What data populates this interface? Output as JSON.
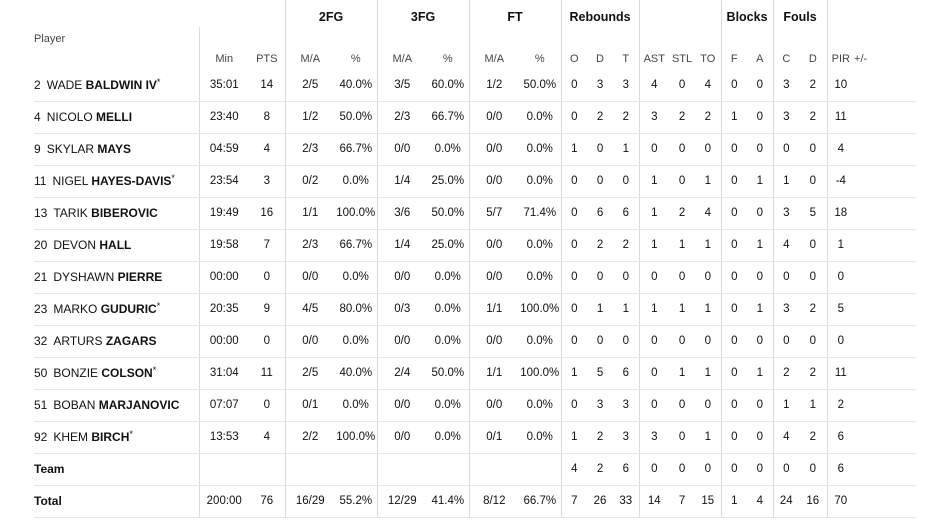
{
  "header": {
    "groups": [
      "2FG",
      "3FG",
      "FT",
      "Rebounds",
      "Blocks",
      "Fouls"
    ],
    "columns": [
      "Player",
      "Min",
      "PTS",
      "M/A",
      "%",
      "M/A",
      "%",
      "M/A",
      "%",
      "O",
      "D",
      "T",
      "AST",
      "STL",
      "TO",
      "F",
      "A",
      "C",
      "D",
      "PIR",
      "+/-"
    ]
  },
  "players": [
    {
      "num": "2",
      "first": "WADE",
      "last": "BALDWIN IV",
      "starter": "*",
      "min": "35:01",
      "pts": "14",
      "fg2": "2/5",
      "fg2p": "40.0%",
      "fg3": "3/5",
      "fg3p": "60.0%",
      "ft": "1/2",
      "ftp": "50.0%",
      "o": "0",
      "d": "3",
      "t": "3",
      "ast": "4",
      "stl": "0",
      "to": "4",
      "bf": "0",
      "ba": "0",
      "fc": "3",
      "fd": "2",
      "pir": "10",
      "pm": ""
    },
    {
      "num": "4",
      "first": "NICOLO",
      "last": "MELLI",
      "starter": "",
      "min": "23:40",
      "pts": "8",
      "fg2": "1/2",
      "fg2p": "50.0%",
      "fg3": "2/3",
      "fg3p": "66.7%",
      "ft": "0/0",
      "ftp": "0.0%",
      "o": "0",
      "d": "2",
      "t": "2",
      "ast": "3",
      "stl": "2",
      "to": "2",
      "bf": "1",
      "ba": "0",
      "fc": "3",
      "fd": "2",
      "pir": "11",
      "pm": ""
    },
    {
      "num": "9",
      "first": "SKYLAR",
      "last": "MAYS",
      "starter": "",
      "min": "04:59",
      "pts": "4",
      "fg2": "2/3",
      "fg2p": "66.7%",
      "fg3": "0/0",
      "fg3p": "0.0%",
      "ft": "0/0",
      "ftp": "0.0%",
      "o": "1",
      "d": "0",
      "t": "1",
      "ast": "0",
      "stl": "0",
      "to": "0",
      "bf": "0",
      "ba": "0",
      "fc": "0",
      "fd": "0",
      "pir": "4",
      "pm": ""
    },
    {
      "num": "11",
      "first": "NIGEL",
      "last": "HAYES-DAVIS",
      "starter": "*",
      "min": "23:54",
      "pts": "3",
      "fg2": "0/2",
      "fg2p": "0.0%",
      "fg3": "1/4",
      "fg3p": "25.0%",
      "ft": "0/0",
      "ftp": "0.0%",
      "o": "0",
      "d": "0",
      "t": "0",
      "ast": "1",
      "stl": "0",
      "to": "1",
      "bf": "0",
      "ba": "1",
      "fc": "1",
      "fd": "0",
      "pir": "-4",
      "pm": ""
    },
    {
      "num": "13",
      "first": "TARIK",
      "last": "BIBEROVIC",
      "starter": "",
      "min": "19:49",
      "pts": "16",
      "fg2": "1/1",
      "fg2p": "100.0%",
      "fg3": "3/6",
      "fg3p": "50.0%",
      "ft": "5/7",
      "ftp": "71.4%",
      "o": "0",
      "d": "6",
      "t": "6",
      "ast": "1",
      "stl": "2",
      "to": "4",
      "bf": "0",
      "ba": "0",
      "fc": "3",
      "fd": "5",
      "pir": "18",
      "pm": ""
    },
    {
      "num": "20",
      "first": "DEVON",
      "last": "HALL",
      "starter": "",
      "min": "19:58",
      "pts": "7",
      "fg2": "2/3",
      "fg2p": "66.7%",
      "fg3": "1/4",
      "fg3p": "25.0%",
      "ft": "0/0",
      "ftp": "0.0%",
      "o": "0",
      "d": "2",
      "t": "2",
      "ast": "1",
      "stl": "1",
      "to": "1",
      "bf": "0",
      "ba": "1",
      "fc": "4",
      "fd": "0",
      "pir": "1",
      "pm": ""
    },
    {
      "num": "21",
      "first": "DYSHAWN",
      "last": "PIERRE",
      "starter": "",
      "min": "00:00",
      "pts": "0",
      "fg2": "0/0",
      "fg2p": "0.0%",
      "fg3": "0/0",
      "fg3p": "0.0%",
      "ft": "0/0",
      "ftp": "0.0%",
      "o": "0",
      "d": "0",
      "t": "0",
      "ast": "0",
      "stl": "0",
      "to": "0",
      "bf": "0",
      "ba": "0",
      "fc": "0",
      "fd": "0",
      "pir": "0",
      "pm": ""
    },
    {
      "num": "23",
      "first": "MARKO",
      "last": "GUDURIC",
      "starter": "*",
      "min": "20:35",
      "pts": "9",
      "fg2": "4/5",
      "fg2p": "80.0%",
      "fg3": "0/3",
      "fg3p": "0.0%",
      "ft": "1/1",
      "ftp": "100.0%",
      "o": "0",
      "d": "1",
      "t": "1",
      "ast": "1",
      "stl": "1",
      "to": "1",
      "bf": "0",
      "ba": "1",
      "fc": "3",
      "fd": "2",
      "pir": "5",
      "pm": ""
    },
    {
      "num": "32",
      "first": "ARTURS",
      "last": "ZAGARS",
      "starter": "",
      "min": "00:00",
      "pts": "0",
      "fg2": "0/0",
      "fg2p": "0.0%",
      "fg3": "0/0",
      "fg3p": "0.0%",
      "ft": "0/0",
      "ftp": "0.0%",
      "o": "0",
      "d": "0",
      "t": "0",
      "ast": "0",
      "stl": "0",
      "to": "0",
      "bf": "0",
      "ba": "0",
      "fc": "0",
      "fd": "0",
      "pir": "0",
      "pm": ""
    },
    {
      "num": "50",
      "first": "BONZIE",
      "last": "COLSON",
      "starter": "*",
      "min": "31:04",
      "pts": "11",
      "fg2": "2/5",
      "fg2p": "40.0%",
      "fg3": "2/4",
      "fg3p": "50.0%",
      "ft": "1/1",
      "ftp": "100.0%",
      "o": "1",
      "d": "5",
      "t": "6",
      "ast": "0",
      "stl": "1",
      "to": "1",
      "bf": "0",
      "ba": "1",
      "fc": "2",
      "fd": "2",
      "pir": "11",
      "pm": ""
    },
    {
      "num": "51",
      "first": "BOBAN",
      "last": "MARJANOVIC",
      "starter": "",
      "min": "07:07",
      "pts": "0",
      "fg2": "0/1",
      "fg2p": "0.0%",
      "fg3": "0/0",
      "fg3p": "0.0%",
      "ft": "0/0",
      "ftp": "0.0%",
      "o": "0",
      "d": "3",
      "t": "3",
      "ast": "0",
      "stl": "0",
      "to": "0",
      "bf": "0",
      "ba": "0",
      "fc": "1",
      "fd": "1",
      "pir": "2",
      "pm": ""
    },
    {
      "num": "92",
      "first": "KHEM",
      "last": "BIRCH",
      "starter": "*",
      "min": "13:53",
      "pts": "4",
      "fg2": "2/2",
      "fg2p": "100.0%",
      "fg3": "0/0",
      "fg3p": "0.0%",
      "ft": "0/1",
      "ftp": "0.0%",
      "o": "1",
      "d": "2",
      "t": "3",
      "ast": "3",
      "stl": "0",
      "to": "1",
      "bf": "0",
      "ba": "0",
      "fc": "4",
      "fd": "2",
      "pir": "6",
      "pm": ""
    }
  ],
  "team": {
    "label": "Team",
    "o": "4",
    "d": "2",
    "t": "6",
    "ast": "0",
    "stl": "0",
    "to": "0",
    "bf": "0",
    "ba": "0",
    "fc": "0",
    "fd": "0",
    "pir": "6"
  },
  "total": {
    "label": "Total",
    "min": "200:00",
    "pts": "76",
    "fg2": "16/29",
    "fg2p": "55.2%",
    "fg3": "12/29",
    "fg3p": "41.4%",
    "ft": "8/12",
    "ftp": "66.7%",
    "o": "7",
    "d": "26",
    "t": "33",
    "ast": "14",
    "stl": "7",
    "to": "15",
    "bf": "1",
    "ba": "4",
    "fc": "24",
    "fd": "16",
    "pir": "70"
  }
}
